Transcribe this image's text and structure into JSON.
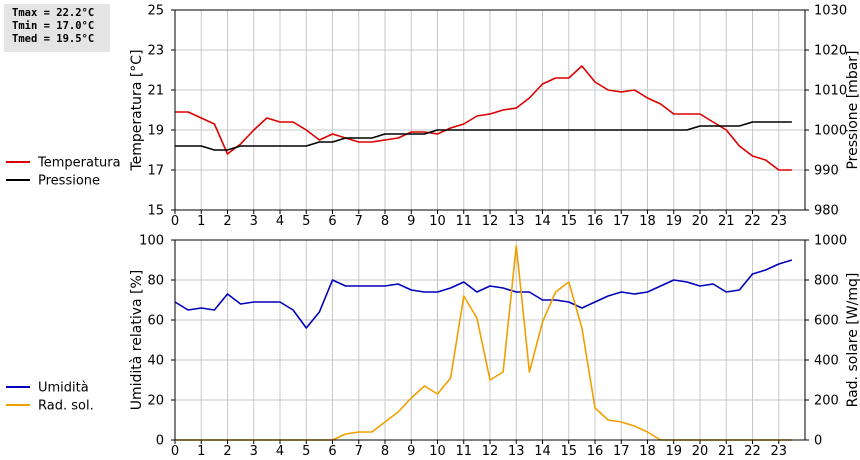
{
  "stats": {
    "tmax": "Tmax = 22.2°C",
    "tmin": "Tmin = 17.0°C",
    "tmed": "Tmed = 19.5°C"
  },
  "colors": {
    "temperatura": "#dd0000",
    "pressione": "#000000",
    "umidita": "#0000bb",
    "rad_sol": "#f0a000",
    "grid": "#c8c8c8"
  },
  "chart_data": [
    {
      "type": "line",
      "x_ticks": [
        "0",
        "1",
        "2",
        "3",
        "4",
        "5",
        "6",
        "7",
        "8",
        "9",
        "10",
        "11",
        "12",
        "13",
        "14",
        "15",
        "16",
        "17",
        "18",
        "19",
        "20",
        "21",
        "22",
        "23"
      ],
      "xlim": [
        0,
        24
      ],
      "ylabel": "Temperatura [°C]",
      "ylim": [
        15,
        25
      ],
      "y_ticks": [
        "15",
        "17",
        "19",
        "21",
        "23",
        "25"
      ],
      "y2label": "Pressione [mbar]",
      "y2lim": [
        980,
        1030
      ],
      "y2_ticks": [
        "980",
        "990",
        "1000",
        "1010",
        "1020",
        "1030"
      ],
      "grid": true,
      "legend_position": "left",
      "series": [
        {
          "name": "Temperatura",
          "axis": "left",
          "x": [
            0,
            0.5,
            1,
            1.5,
            2,
            2.5,
            3,
            3.5,
            4,
            4.5,
            5,
            5.5,
            6,
            6.5,
            7,
            7.5,
            8,
            8.5,
            9,
            9.5,
            10,
            10.5,
            11,
            11.5,
            12,
            12.5,
            13,
            13.5,
            14,
            14.5,
            15,
            15.5,
            16,
            16.5,
            17,
            17.5,
            18,
            18.5,
            19,
            19.5,
            20,
            20.5,
            21,
            21.5,
            22,
            22.5,
            23,
            23.5
          ],
          "values": [
            19.9,
            19.9,
            19.6,
            19.3,
            17.8,
            18.3,
            19.0,
            19.6,
            19.4,
            19.4,
            19.0,
            18.5,
            18.8,
            18.6,
            18.4,
            18.4,
            18.5,
            18.6,
            18.9,
            18.9,
            18.8,
            19.1,
            19.3,
            19.7,
            19.8,
            20.0,
            20.1,
            20.6,
            21.3,
            21.6,
            21.6,
            22.2,
            21.4,
            21.0,
            20.9,
            21.0,
            20.6,
            20.3,
            19.8,
            19.8,
            19.8,
            19.4,
            19.0,
            18.2,
            17.7,
            17.5,
            17.0,
            17.0
          ]
        },
        {
          "name": "Pressione",
          "axis": "right",
          "x": [
            0,
            0.5,
            1,
            1.5,
            2,
            2.5,
            3,
            3.5,
            4,
            4.5,
            5,
            5.5,
            6,
            6.5,
            7,
            7.5,
            8,
            8.5,
            9,
            9.5,
            10,
            10.5,
            11,
            11.5,
            12,
            12.5,
            13,
            13.5,
            14,
            14.5,
            15,
            15.5,
            16,
            16.5,
            17,
            17.5,
            18,
            18.5,
            19,
            19.5,
            20,
            20.5,
            21,
            21.5,
            22,
            22.5,
            23,
            23.5
          ],
          "values": [
            996,
            996,
            996,
            995,
            995,
            996,
            996,
            996,
            996,
            996,
            996,
            997,
            997,
            998,
            998,
            998,
            999,
            999,
            999,
            999,
            1000,
            1000,
            1000,
            1000,
            1000,
            1000,
            1000,
            1000,
            1000,
            1000,
            1000,
            1000,
            1000,
            1000,
            1000,
            1000,
            1000,
            1000,
            1000,
            1000,
            1001,
            1001,
            1001,
            1001,
            1002,
            1002,
            1002,
            1002
          ]
        }
      ]
    },
    {
      "type": "line",
      "x_ticks": [
        "0",
        "1",
        "2",
        "3",
        "4",
        "5",
        "6",
        "7",
        "8",
        "9",
        "10",
        "11",
        "12",
        "13",
        "14",
        "15",
        "16",
        "17",
        "18",
        "19",
        "20",
        "21",
        "22",
        "23"
      ],
      "xlim": [
        0,
        24
      ],
      "ylabel": "Umidità relativa [%]",
      "ylim": [
        0,
        100
      ],
      "y_ticks": [
        "0",
        "20",
        "40",
        "60",
        "80",
        "100"
      ],
      "y2label": "Rad. solare [W/mq]",
      "y2lim": [
        0,
        1000
      ],
      "y2_ticks": [
        "0",
        "200",
        "400",
        "600",
        "800",
        "1000"
      ],
      "grid": true,
      "legend_position": "left",
      "series": [
        {
          "name": "Umidità",
          "axis": "left",
          "x": [
            0,
            0.5,
            1,
            1.5,
            2,
            2.5,
            3,
            3.5,
            4,
            4.5,
            5,
            5.5,
            6,
            6.5,
            7,
            7.5,
            8,
            8.5,
            9,
            9.5,
            10,
            10.5,
            11,
            11.5,
            12,
            12.5,
            13,
            13.5,
            14,
            14.5,
            15,
            15.5,
            16,
            16.5,
            17,
            17.5,
            18,
            18.5,
            19,
            19.5,
            20,
            20.5,
            21,
            21.5,
            22,
            22.5,
            23,
            23.5
          ],
          "values": [
            69,
            65,
            66,
            65,
            73,
            68,
            69,
            69,
            69,
            65,
            56,
            64,
            80,
            77,
            77,
            77,
            77,
            78,
            75,
            74,
            74,
            76,
            79,
            74,
            77,
            76,
            74,
            74,
            70,
            70,
            69,
            66,
            69,
            72,
            74,
            73,
            74,
            77,
            80,
            79,
            77,
            78,
            74,
            75,
            83,
            85,
            88,
            90
          ]
        },
        {
          "name": "Rad. sol.",
          "axis": "right",
          "x": [
            0,
            0.5,
            1,
            1.5,
            2,
            2.5,
            3,
            3.5,
            4,
            4.5,
            5,
            5.5,
            6,
            6.5,
            7,
            7.5,
            8,
            8.5,
            9,
            9.5,
            10,
            10.5,
            11,
            11.5,
            12,
            12.5,
            13,
            13.5,
            14,
            14.5,
            15,
            15.5,
            16,
            16.5,
            17,
            17.5,
            18,
            18.5,
            19,
            19.5,
            20,
            20.5,
            21,
            21.5,
            22,
            22.5,
            23,
            23.5
          ],
          "values": [
            0,
            0,
            0,
            0,
            0,
            0,
            0,
            0,
            0,
            0,
            0,
            0,
            0,
            30,
            40,
            40,
            90,
            140,
            210,
            270,
            230,
            310,
            720,
            610,
            300,
            340,
            970,
            340,
            590,
            740,
            790,
            560,
            160,
            100,
            90,
            70,
            40,
            0,
            0,
            0,
            0,
            0,
            0,
            0,
            0,
            0,
            0,
            0
          ]
        }
      ]
    }
  ]
}
